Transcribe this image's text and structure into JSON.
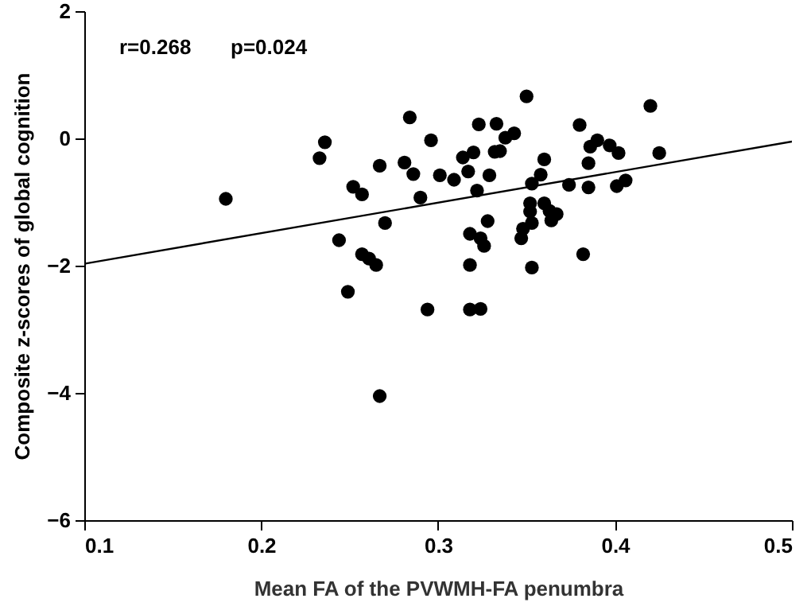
{
  "chart_data": {
    "type": "scatter",
    "xlabel": "Mean FA of the PVWMH-FA penumbra",
    "ylabel": "Composite z-scores of global cognition",
    "annotations": [
      "r=0.268",
      "p=0.024"
    ],
    "xlim": [
      0.1,
      0.5
    ],
    "xticks": [
      0.1,
      0.2,
      0.3,
      0.4,
      0.5
    ],
    "ylim": [
      -6,
      2
    ],
    "yticks": [
      -6,
      -4,
      -2,
      0,
      2
    ],
    "grid": false,
    "series": [
      {
        "color": "#000000",
        "marker": "circle",
        "x": [
          0.18,
          0.233,
          0.236,
          0.244,
          0.249,
          0.252,
          0.257,
          0.257,
          0.261,
          0.265,
          0.267,
          0.267,
          0.27,
          0.281,
          0.284,
          0.286,
          0.29,
          0.294,
          0.296,
          0.301,
          0.309,
          0.314,
          0.317,
          0.318,
          0.318,
          0.318,
          0.32,
          0.322,
          0.323,
          0.324,
          0.324,
          0.326,
          0.328,
          0.329,
          0.332,
          0.333,
          0.335,
          0.338,
          0.343,
          0.347,
          0.348,
          0.35,
          0.352,
          0.352,
          0.353,
          0.353,
          0.353,
          0.358,
          0.36,
          0.36,
          0.363,
          0.364,
          0.367,
          0.374,
          0.38,
          0.382,
          0.385,
          0.385,
          0.386,
          0.39,
          0.397,
          0.401,
          0.402,
          0.406,
          0.42,
          0.425
        ],
        "values": [
          -0.95,
          -0.31,
          -0.06,
          -1.6,
          -2.41,
          -0.76,
          -0.88,
          -1.82,
          -1.89,
          -1.99,
          -0.43,
          -4.05,
          -1.33,
          -0.38,
          0.33,
          -0.56,
          -0.93,
          -2.69,
          -0.03,
          -0.58,
          -0.65,
          -0.3,
          -0.52,
          -1.5,
          -1.99,
          -2.69,
          -0.22,
          -0.82,
          0.22,
          -1.57,
          -2.68,
          -1.69,
          -1.3,
          -0.58,
          -0.21,
          0.23,
          -0.2,
          0.01,
          0.08,
          -1.57,
          -1.42,
          0.66,
          -1.02,
          -1.15,
          -0.71,
          -1.33,
          -2.03,
          -0.57,
          -0.33,
          -1.02,
          -1.14,
          -1.29,
          -1.19,
          -0.73,
          0.21,
          -1.82,
          -0.77,
          -0.39,
          -0.13,
          -0.03,
          -0.11,
          -0.75,
          -0.23,
          -0.66,
          0.51,
          -0.23
        ]
      },
      {
        "type": "line",
        "marker": "none",
        "color": "#000000",
        "x": [
          0.1,
          0.5
        ],
        "values": [
          -1.97,
          -0.05
        ],
        "line_style": "solid"
      }
    ]
  }
}
